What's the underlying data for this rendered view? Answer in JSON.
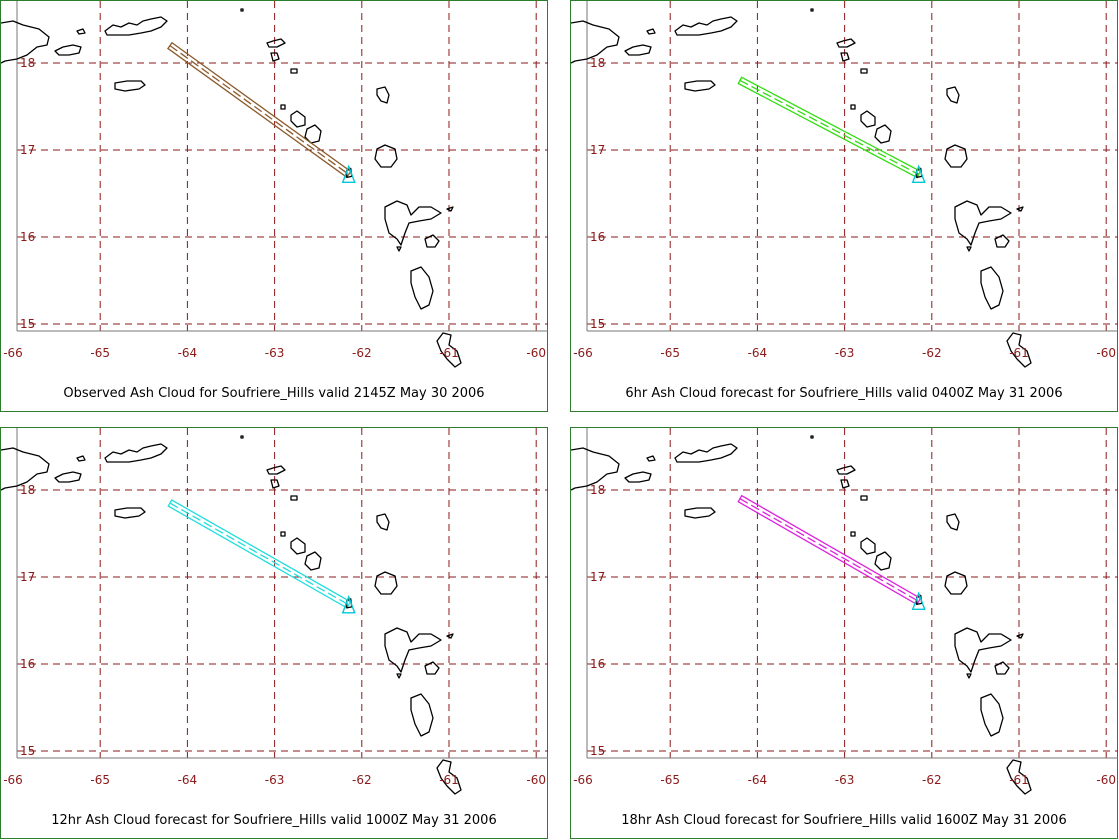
{
  "panels": [
    {
      "caption": "Observed Ash Cloud for Soufriere_Hills valid 2145Z May 30 2006",
      "cloud_color": "#8b5a2b",
      "plume": {
        "from": [
          -64.2,
          18.2
        ],
        "to": [
          -62.15,
          16.72
        ]
      }
    },
    {
      "caption": "6hr Ash Cloud forecast for Soufriere_Hills valid 0400Z May 31 2006",
      "cloud_color": "#33dd11",
      "plume": {
        "from": [
          -64.2,
          17.8
        ],
        "to": [
          -62.15,
          16.72
        ]
      }
    },
    {
      "caption": "12hr Ash Cloud forecast for Soufriere_Hills valid 1000Z May 31 2006",
      "cloud_color": "#22dddd",
      "plume": {
        "from": [
          -64.2,
          17.85
        ],
        "to": [
          -62.15,
          16.68
        ]
      }
    },
    {
      "caption": "18hr Ash Cloud forecast for Soufriere_Hills valid 1600Z May 31 2006",
      "cloud_color": "#dd22dd",
      "plume": {
        "from": [
          -64.2,
          17.9
        ],
        "to": [
          -62.15,
          16.72
        ]
      }
    }
  ],
  "map": {
    "lon_ticks": [
      "-66",
      "-65",
      "-64",
      "-63",
      "-62",
      "-61",
      "-60"
    ],
    "lat_ticks": [
      "18",
      "17",
      "16",
      "15"
    ],
    "lon_range": [
      -66,
      -60
    ],
    "lat_range": [
      14.6,
      18.7
    ],
    "lon_values": [
      -66,
      -65,
      -64,
      -63,
      -62,
      -61,
      -60
    ],
    "lat_values": [
      18,
      17,
      16,
      15
    ],
    "grid_color": "#8b1a1a",
    "vent_color": "#00c8d8"
  }
}
